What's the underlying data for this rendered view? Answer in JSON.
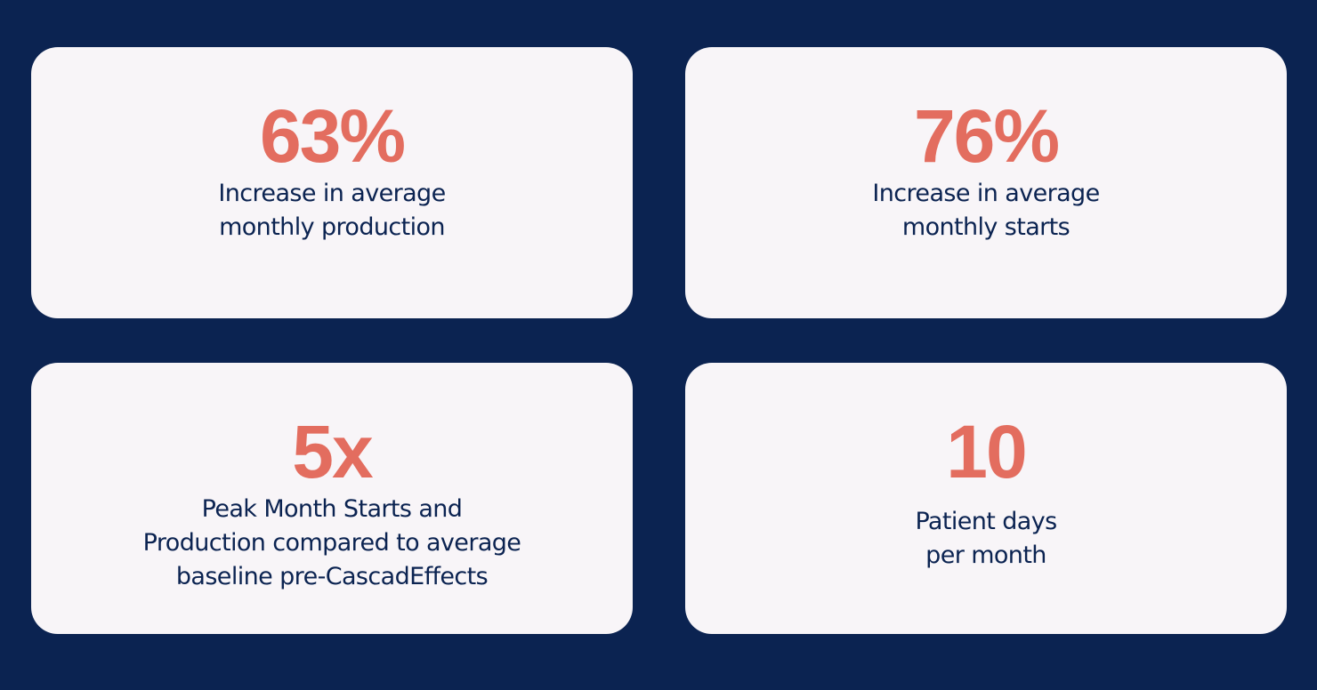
{
  "colors": {
    "background": "#0b2351",
    "card": "#f8f5f8",
    "accent": "#e36d5f",
    "text": "#0b2351"
  },
  "stats": [
    {
      "value": "63%",
      "label_lines": [
        "Increase in average",
        "monthly production"
      ]
    },
    {
      "value": "76%",
      "label_lines": [
        "Increase in average",
        "monthly starts"
      ]
    },
    {
      "value": "5x",
      "label_lines": [
        "Peak Month Starts and",
        "Production compared to average",
        "baseline pre-CascadEffects"
      ]
    },
    {
      "value": "10",
      "label_lines": [
        "Patient days",
        "per month"
      ]
    }
  ]
}
